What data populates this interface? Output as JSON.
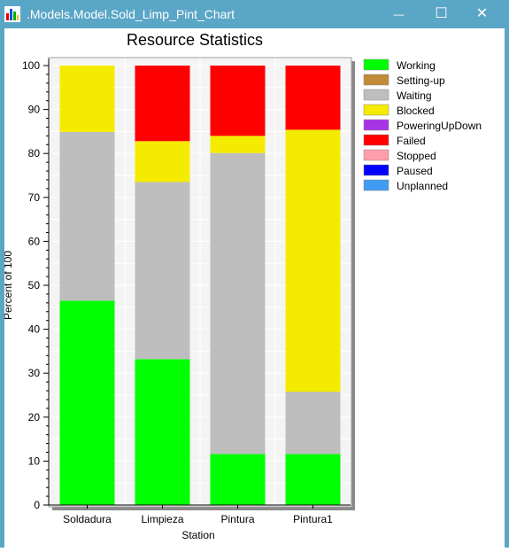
{
  "window": {
    "title": ".Models.Model.Sold_Limp_Pint_Chart",
    "minimize_glyph": "—",
    "maximize_glyph": "☐",
    "close_glyph": "✕",
    "icon": "bar-chart-app-icon"
  },
  "colors": {
    "titlebar": "#5aa6c6",
    "plot_background": "#f4f4f4",
    "grid": "#ffffff"
  },
  "chart_data": {
    "type": "bar",
    "stacked": true,
    "title": "Resource Statistics",
    "xlabel": "Station",
    "ylabel": "Percent of 100",
    "ylim": [
      0,
      100
    ],
    "yticks": [
      0,
      10,
      20,
      30,
      40,
      50,
      60,
      70,
      80,
      90,
      100
    ],
    "categories": [
      "Soldadura",
      "Limpieza",
      "Pintura",
      "Pintura1"
    ],
    "legend_position": "right",
    "series": [
      {
        "name": "Working",
        "color": "#00ff00",
        "values": [
          46.5,
          33.2,
          11.6,
          11.6
        ]
      },
      {
        "name": "Setting-up",
        "color": "#c08a37",
        "values": [
          0,
          0,
          0,
          0
        ]
      },
      {
        "name": "Waiting",
        "color": "#bebebe",
        "values": [
          38.4,
          40.3,
          68.5,
          14.2
        ]
      },
      {
        "name": "Blocked",
        "color": "#f4eb00",
        "values": [
          15.1,
          9.3,
          3.9,
          59.6
        ]
      },
      {
        "name": "PoweringUpDown",
        "color": "#a832e6",
        "values": [
          0,
          0,
          0,
          0
        ]
      },
      {
        "name": "Failed",
        "color": "#ff0000",
        "values": [
          0,
          17.2,
          16.0,
          14.6
        ]
      },
      {
        "name": "Stopped",
        "color": "#ff9daa",
        "values": [
          0,
          0,
          0,
          0
        ]
      },
      {
        "name": "Paused",
        "color": "#0000ff",
        "values": [
          0,
          0,
          0,
          0
        ]
      },
      {
        "name": "Unplanned",
        "color": "#3f9cf2",
        "values": [
          0,
          0,
          0,
          0
        ]
      }
    ]
  }
}
